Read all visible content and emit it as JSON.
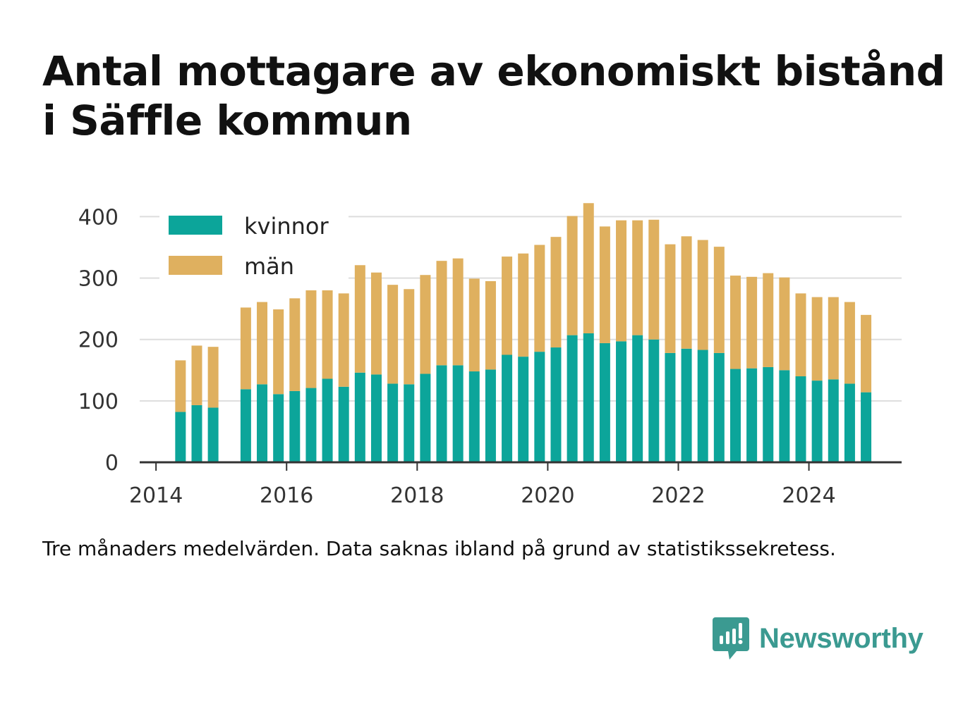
{
  "title_line1": "Antal mottagare av ekonomiskt bistånd",
  "title_line2": "i Säffle kommun",
  "note": "Tre månaders medelvärden. Data saknas ibland på grund av statistikssekretess.",
  "brand": {
    "name": "Newsworthy",
    "icon": "bar-chart-speech-bubble-icon",
    "color": "#3b9a91"
  },
  "chart_data": {
    "type": "bar",
    "stacked": true,
    "x_unit": "year",
    "x": [
      2014.375,
      2014.625,
      2014.875,
      2015.375,
      2015.625,
      2015.875,
      2016.125,
      2016.375,
      2016.625,
      2016.875,
      2017.125,
      2017.375,
      2017.625,
      2017.875,
      2018.125,
      2018.375,
      2018.625,
      2018.875,
      2019.125,
      2019.375,
      2019.625,
      2019.875,
      2020.125,
      2020.375,
      2020.625,
      2020.875,
      2021.125,
      2021.375,
      2021.625,
      2021.875,
      2022.125,
      2022.375,
      2022.625,
      2022.875,
      2023.125,
      2023.375,
      2023.625,
      2023.875,
      2024.125,
      2024.375,
      2024.625,
      2024.875
    ],
    "series": [
      {
        "name": "kvinnor",
        "color": "#0ca59a",
        "values": [
          82,
          93,
          89,
          119,
          127,
          111,
          116,
          121,
          136,
          123,
          146,
          143,
          128,
          127,
          144,
          158,
          158,
          148,
          151,
          175,
          172,
          180,
          187,
          207,
          210,
          194,
          197,
          207,
          200,
          178,
          185,
          183,
          178,
          152,
          153,
          155,
          150,
          140,
          133,
          135,
          128,
          114
        ]
      },
      {
        "name": "män",
        "color": "#dfb05f",
        "values": [
          84,
          97,
          99,
          133,
          134,
          138,
          151,
          169,
          161,
          152,
          175,
          166,
          161,
          155,
          161,
          170,
          174,
          151,
          144,
          160,
          168,
          174,
          180,
          194,
          212,
          190,
          197,
          187,
          195,
          177,
          183,
          179,
          173,
          152,
          149,
          153,
          151,
          135,
          136,
          134,
          133,
          126
        ]
      }
    ],
    "y_ticks": [
      "0",
      "100",
      "200",
      "300",
      "400"
    ],
    "x_ticks": [
      "2014",
      "2016",
      "2018",
      "2020",
      "2022",
      "2024"
    ],
    "ylim": [
      0,
      420
    ],
    "xlim": [
      2013.75,
      2025.42
    ],
    "grid": true,
    "legend_position": "top-left",
    "axis_color": "#333333",
    "grid_color": "#dddddd"
  }
}
